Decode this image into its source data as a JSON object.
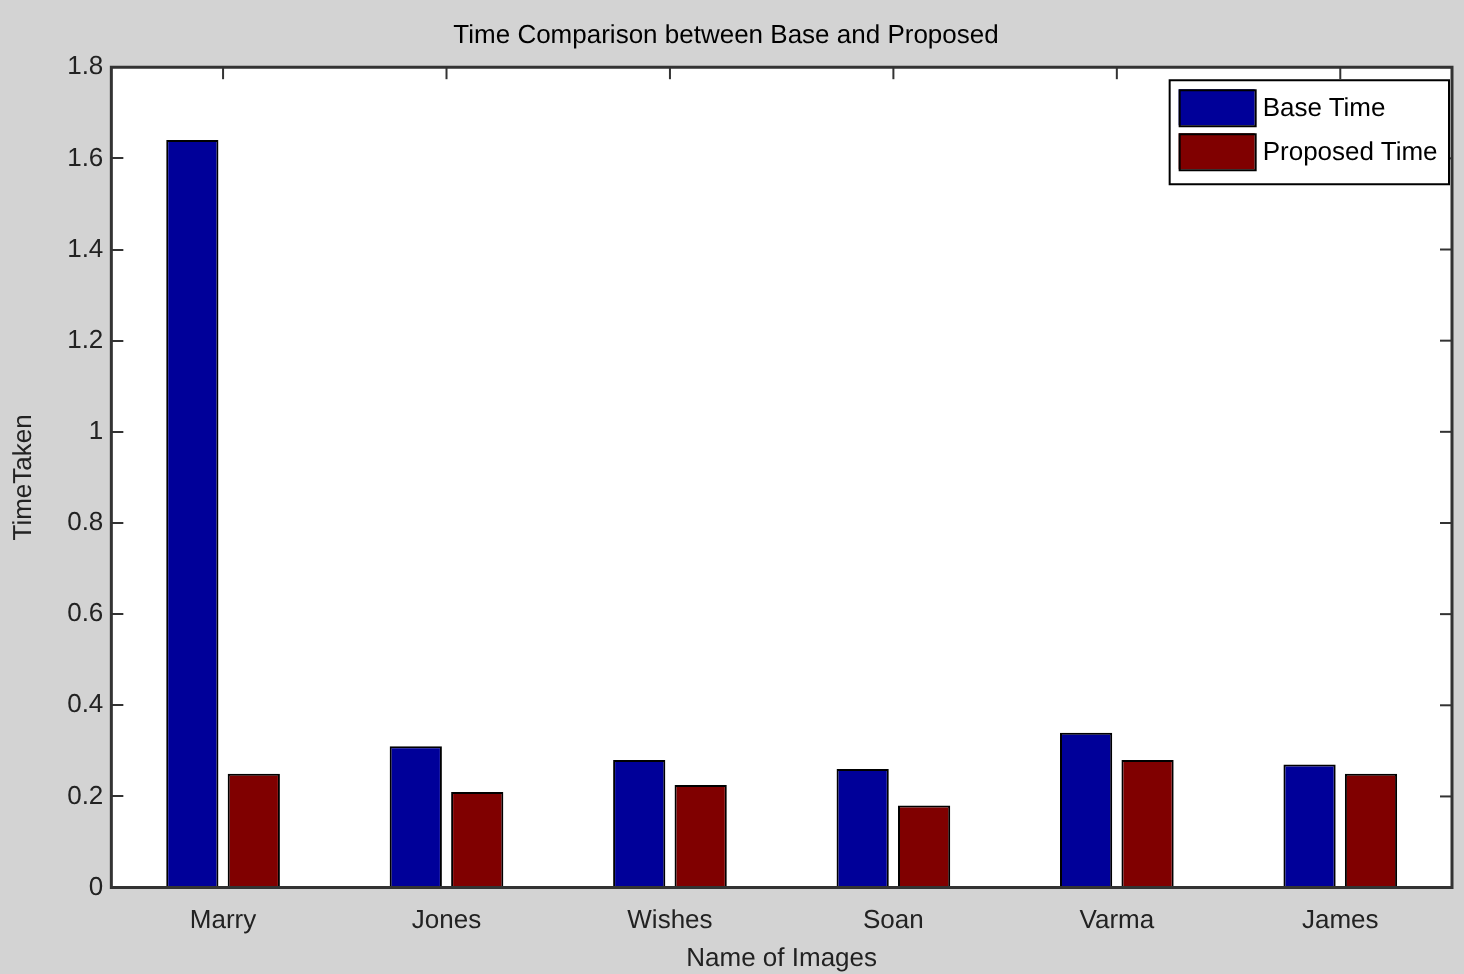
{
  "chart_data": {
    "type": "bar",
    "title": "Time Comparison between Base and Proposed",
    "xlabel": "Name of Images",
    "ylabel": "TimeTaken",
    "categories": [
      "Marry",
      "Jones",
      "Wishes",
      "Soan",
      "Varma",
      "James"
    ],
    "series": [
      {
        "name": "Base Time",
        "color": "#000099",
        "values": [
          1.64,
          0.31,
          0.28,
          0.26,
          0.34,
          0.27
        ]
      },
      {
        "name": "Proposed Time",
        "color": "#800000",
        "values": [
          0.25,
          0.21,
          0.225,
          0.18,
          0.28,
          0.25
        ]
      }
    ],
    "ylim": [
      0,
      1.8
    ],
    "yticks": [
      0,
      0.2,
      0.4,
      0.6,
      0.8,
      1,
      1.2,
      1.4,
      1.6,
      1.8
    ],
    "grid": false,
    "legend": "top right"
  }
}
